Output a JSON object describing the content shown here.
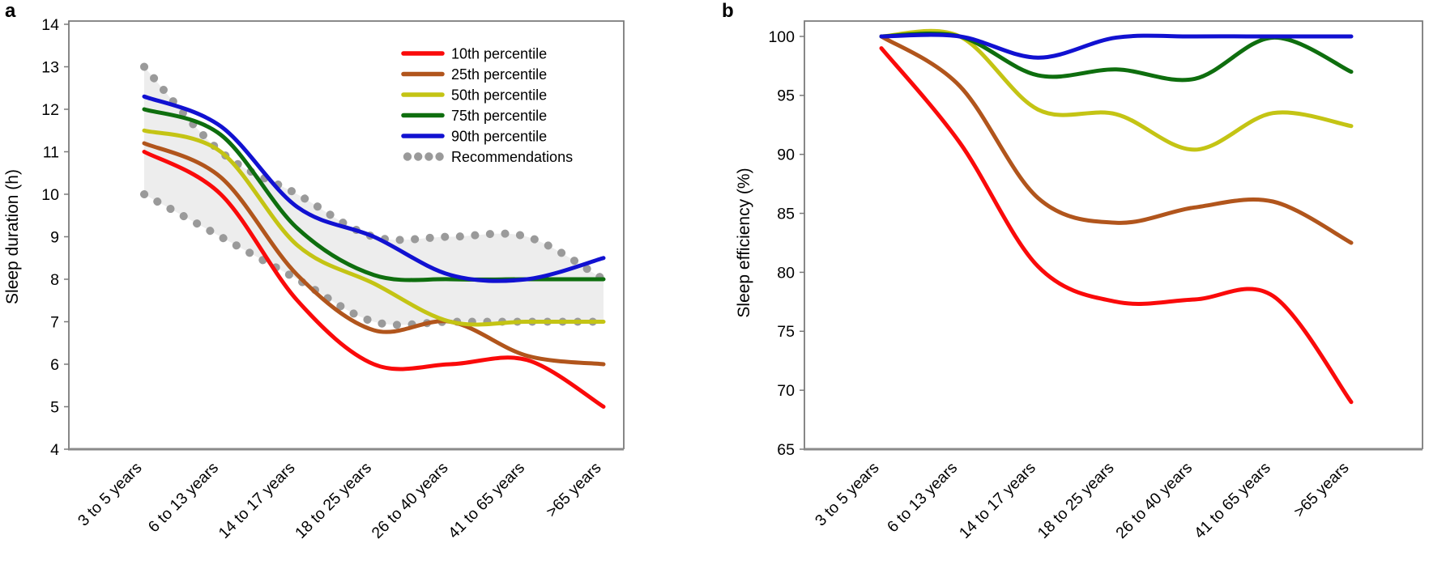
{
  "panels": {
    "a": {
      "letter": "a"
    },
    "b": {
      "letter": "b"
    }
  },
  "colors": {
    "p10": "#fa0a0a",
    "p25": "#b1551c",
    "p50": "#c4c414",
    "p75": "#0e6e0e",
    "p90": "#1111d1",
    "recommendations": "#9a9a9a",
    "band": "#ededed",
    "axis": "#7a7a7a",
    "axis_bottom": "#8a8a8a",
    "text": "#000000"
  },
  "chart_data": [
    {
      "type": "line",
      "panel": "a",
      "title": "",
      "xlabel": "",
      "ylabel": "Sleep duration (h)",
      "ylim": [
        4,
        14
      ],
      "yticks": [
        "14",
        "13",
        "12",
        "11",
        "10",
        "9",
        "8",
        "7",
        "6",
        "5",
        "4"
      ],
      "grid": false,
      "categories": [
        "3 to 5 years",
        "6 to 13 years",
        "14 to 17 years",
        "18 to 25 years",
        "26 to 40 years",
        "41 to 65 years",
        ">65 years"
      ],
      "series": [
        {
          "name": "10th percentile",
          "color": "#fa0a0a",
          "values": [
            11.0,
            10.0,
            7.5,
            6.0,
            6.0,
            6.1,
            5.0
          ]
        },
        {
          "name": "25th percentile",
          "color": "#b1551c",
          "values": [
            11.2,
            10.4,
            8.1,
            6.8,
            7.0,
            6.2,
            6.0
          ]
        },
        {
          "name": "50th percentile",
          "color": "#c4c414",
          "values": [
            11.5,
            11.0,
            8.8,
            7.9,
            7.0,
            7.0,
            7.0
          ]
        },
        {
          "name": "75th percentile",
          "color": "#0e6e0e",
          "values": [
            12.0,
            11.4,
            9.2,
            8.1,
            8.0,
            8.0,
            8.0
          ]
        },
        {
          "name": "90th percentile",
          "color": "#1111d1",
          "values": [
            12.3,
            11.6,
            9.7,
            9.0,
            8.1,
            8.0,
            8.5
          ]
        }
      ],
      "recommendations": {
        "name": "Recommendations",
        "color": "#9a9a9a",
        "band_color": "#ededed",
        "upper": [
          13,
          11,
          10,
          9,
          9,
          9,
          8
        ],
        "lower": [
          10,
          9,
          8,
          7,
          7,
          7,
          7
        ]
      },
      "legend": {
        "show": true,
        "position": "top-right",
        "labels": [
          "10th percentile",
          "25th percentile",
          "50th percentile",
          "75th percentile",
          "90th percentile",
          "Recommendations"
        ]
      }
    },
    {
      "type": "line",
      "panel": "b",
      "title": "",
      "xlabel": "",
      "ylabel": "Sleep efficiency (%)",
      "ylim": [
        65,
        100
      ],
      "yticks": [
        "100",
        "95",
        "90",
        "85",
        "80",
        "75",
        "70",
        "65"
      ],
      "grid": false,
      "categories": [
        "3 to 5 years",
        "6 to 13 years",
        "14 to 17 years",
        "18 to 25 years",
        "26 to 40 years",
        "41 to 65 years",
        ">65 years"
      ],
      "series": [
        {
          "name": "10th percentile",
          "color": "#fa0a0a",
          "values": [
            99.0,
            91.0,
            80.5,
            77.5,
            77.7,
            78.0,
            69.0
          ]
        },
        {
          "name": "25th percentile",
          "color": "#b1551c",
          "values": [
            100.0,
            95.8,
            86.3,
            84.2,
            85.5,
            86.0,
            82.5
          ]
        },
        {
          "name": "50th percentile",
          "color": "#c4c414",
          "values": [
            100.0,
            100.0,
            93.8,
            93.4,
            90.4,
            93.5,
            92.4
          ]
        },
        {
          "name": "75th percentile",
          "color": "#0e6e0e",
          "values": [
            100.0,
            100.0,
            96.7,
            97.2,
            96.4,
            99.9,
            97.0
          ]
        },
        {
          "name": "90th percentile",
          "color": "#1111d1",
          "values": [
            100.0,
            100.0,
            98.2,
            99.9,
            100.0,
            100.0,
            100.0
          ]
        }
      ],
      "legend": {
        "show": false
      }
    }
  ]
}
